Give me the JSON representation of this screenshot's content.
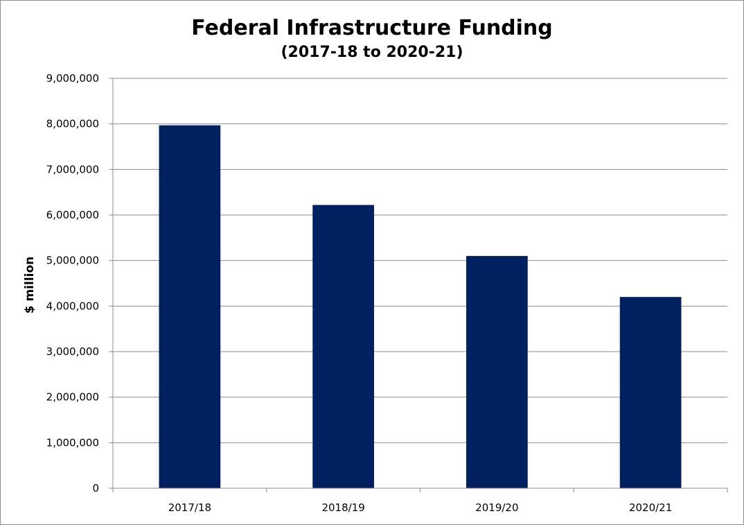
{
  "chart_data": {
    "type": "bar",
    "title": "Federal Infrastructure Funding",
    "subtitle": "(2017-18 to 2020-21)",
    "xlabel": "",
    "ylabel": "$ million",
    "categories": [
      "2017/18",
      "2018/19",
      "2019/20",
      "2020/21"
    ],
    "values": [
      7970000,
      6220000,
      5100000,
      4200000
    ],
    "ylim": [
      0,
      9000000
    ],
    "yticks": [
      0,
      1000000,
      2000000,
      3000000,
      4000000,
      5000000,
      6000000,
      7000000,
      8000000,
      9000000
    ],
    "ytick_labels": [
      "0",
      "1,000,000",
      "2,000,000",
      "3,000,000",
      "4,000,000",
      "5,000,000",
      "6,000,000",
      "7,000,000",
      "8,000,000",
      "9,000,000"
    ],
    "grid": true,
    "legend": "none",
    "bar_color": "#002060"
  }
}
